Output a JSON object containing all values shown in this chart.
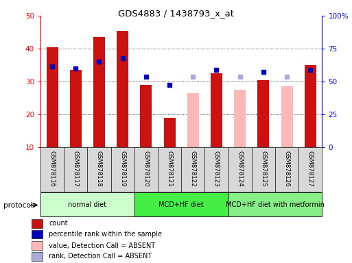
{
  "title": "GDS4883 / 1438793_x_at",
  "samples": [
    "GSM878116",
    "GSM878117",
    "GSM878118",
    "GSM878119",
    "GSM878120",
    "GSM878121",
    "GSM878122",
    "GSM878123",
    "GSM878124",
    "GSM878125",
    "GSM878126",
    "GSM878127"
  ],
  "count_values": [
    40.5,
    33.5,
    43.5,
    45.5,
    29.0,
    19.0,
    null,
    32.5,
    null,
    30.5,
    null,
    35.0
  ],
  "count_absent": [
    null,
    null,
    null,
    null,
    null,
    null,
    26.5,
    null,
    27.5,
    null,
    28.5,
    null
  ],
  "percentile_present": [
    34.5,
    34.0,
    36.0,
    37.0,
    31.5,
    29.0,
    null,
    33.5,
    null,
    33.0,
    null,
    33.5
  ],
  "percentile_absent": [
    null,
    null,
    null,
    null,
    null,
    null,
    31.5,
    null,
    31.5,
    null,
    31.5,
    null
  ],
  "protocols": [
    {
      "label": "normal diet",
      "start": 0,
      "end": 4,
      "color": "#ccffcc"
    },
    {
      "label": "MCD+HF diet",
      "start": 4,
      "end": 8,
      "color": "#44ee44"
    },
    {
      "label": "MCD+HF diet with metformin",
      "start": 8,
      "end": 12,
      "color": "#88ee88"
    }
  ],
  "ylim_left": [
    10,
    50
  ],
  "ylim_right": [
    0,
    100
  ],
  "left_ticks": [
    10,
    20,
    30,
    40,
    50
  ],
  "right_ticks": [
    0,
    25,
    50,
    75,
    100
  ],
  "right_tick_labels": [
    "0",
    "25",
    "50",
    "75",
    "100%"
  ],
  "bar_color_red": "#cc1111",
  "bar_color_pink": "#ffb8b8",
  "dot_color_blue": "#0000bb",
  "dot_color_lightblue": "#aaaadd",
  "legend_labels": [
    "count",
    "percentile rank within the sample",
    "value, Detection Call = ABSENT",
    "rank, Detection Call = ABSENT"
  ],
  "legend_colors": [
    "#cc1111",
    "#0000bb",
    "#ffb8b8",
    "#aaaadd"
  ],
  "bg_color": "#d8d8d8",
  "chart_bg": "#ffffff"
}
